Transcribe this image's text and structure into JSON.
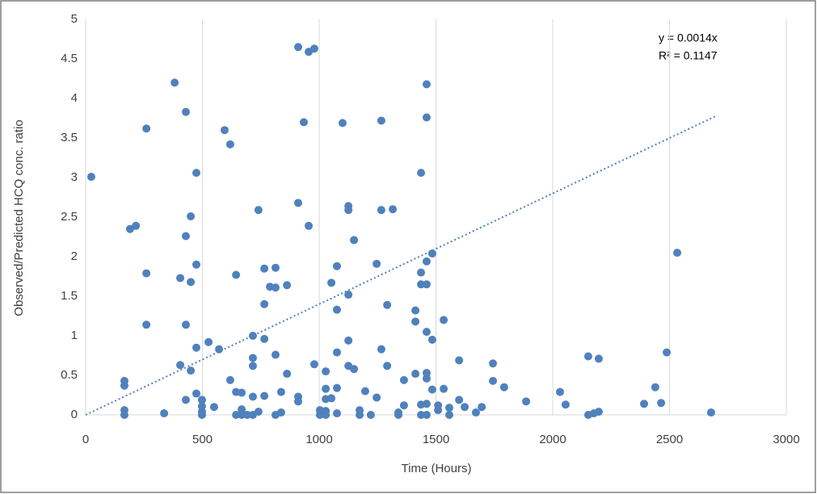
{
  "chart_data": {
    "type": "scatter",
    "y_label": "Observed/Predicted  HCQ conc. ratio",
    "x_label": "Time (Hours)",
    "xlim": [
      0,
      3000
    ],
    "xticks": [
      0,
      500,
      1000,
      1500,
      2000,
      2500,
      3000
    ],
    "ylim": [
      0,
      5
    ],
    "yticks": [
      0,
      0.5,
      1,
      1.5,
      2,
      2.5,
      3,
      3.5,
      4,
      4.5,
      5
    ],
    "grid": true,
    "trendline": {
      "equation": "y = 0.0014x",
      "r_squared": "R² = 0.1147",
      "slope": 0.0014,
      "x_end": 2700,
      "color": "#4f81bd"
    },
    "series": [
      {
        "color": "#4f81bd",
        "x": [
          24,
          166,
          166,
          166,
          166,
          190,
          215,
          260,
          260,
          260,
          336,
          381,
          405,
          405,
          429,
          429,
          429,
          429,
          450,
          450,
          450,
          474,
          474,
          474,
          474,
          498,
          498,
          498,
          498,
          526,
          550,
          571,
          595,
          619,
          619,
          644,
          644,
          644,
          668,
          668,
          668,
          692,
          716,
          716,
          716,
          716,
          716,
          740,
          740,
          765,
          765,
          765,
          765,
          789,
          813,
          813,
          813,
          813,
          837,
          837,
          862,
          862,
          910,
          910,
          910,
          910,
          934,
          955,
          955,
          979,
          979,
          1003,
          1003,
          1028,
          1028,
          1028,
          1028,
          1028,
          1052,
          1052,
          1076,
          1076,
          1076,
          1076,
          1076,
          1100,
          1125,
          1125,
          1125,
          1125,
          1125,
          1149,
          1149,
          1173,
          1173,
          1197,
          1221,
          1246,
          1246,
          1266,
          1266,
          1266,
          1291,
          1291,
          1315,
          1339,
          1339,
          1363,
          1363,
          1412,
          1412,
          1412,
          1436,
          1436,
          1436,
          1436,
          1436,
          1460,
          1460,
          1460,
          1460,
          1460,
          1460,
          1460,
          1460,
          1460,
          1484,
          1484,
          1484,
          1509,
          1509,
          1533,
          1533,
          1557,
          1557,
          1599,
          1599,
          1623,
          1671,
          1696,
          1744,
          1744,
          1792,
          1886,
          2031,
          2055,
          2152,
          2152,
          2176,
          2197,
          2197,
          2391,
          2439,
          2464,
          2488,
          2533,
          2678
        ],
        "values": [
          3.01,
          0.43,
          0.37,
          0.06,
          0,
          2.35,
          2.39,
          1.79,
          1.14,
          3.62,
          0.02,
          4.2,
          1.73,
          0.63,
          3.83,
          2.26,
          1.14,
          0.19,
          2.51,
          1.68,
          0.56,
          3.06,
          1.9,
          0.85,
          0.27,
          0.19,
          0.11,
          0.04,
          0,
          0.92,
          0.1,
          0.83,
          3.6,
          3.42,
          0.44,
          1.77,
          0.29,
          0,
          0.28,
          0.07,
          0,
          0,
          1,
          0.72,
          0.62,
          0.23,
          0,
          2.59,
          0.04,
          1.85,
          1.4,
          0.96,
          0.24,
          1.62,
          1.86,
          1.61,
          0.76,
          0,
          0.29,
          0.03,
          1.64,
          0.52,
          4.65,
          2.68,
          0.23,
          0.17,
          3.7,
          4.59,
          2.39,
          4.63,
          0.64,
          0.06,
          0,
          0.55,
          0.33,
          0.2,
          0.05,
          0,
          1.67,
          0.21,
          1.88,
          1.33,
          0.79,
          0.34,
          0.02,
          3.69,
          2.64,
          2.59,
          1.52,
          0.94,
          0.62,
          0.58,
          2.21,
          0.06,
          0,
          0.3,
          0,
          1.91,
          0.22,
          3.72,
          2.59,
          0.83,
          1.39,
          0.62,
          2.6,
          0.03,
          0,
          0.44,
          0.12,
          1.32,
          1.18,
          0.52,
          3.06,
          1.8,
          1.65,
          0.13,
          0,
          4.18,
          3.76,
          1.94,
          1.65,
          1.05,
          0.53,
          0.46,
          0.14,
          0,
          2.04,
          0.95,
          0.32,
          0.06,
          0.12,
          1.2,
          0.33,
          0.09,
          0,
          0.19,
          0.69,
          0.1,
          0.03,
          0.1,
          0.65,
          0.43,
          0.35,
          0.17,
          0.29,
          0.13,
          0.74,
          0,
          0.02,
          0.71,
          0.04,
          0.14,
          0.35,
          0.15,
          0.79,
          2.05,
          0.03
        ]
      }
    ]
  }
}
